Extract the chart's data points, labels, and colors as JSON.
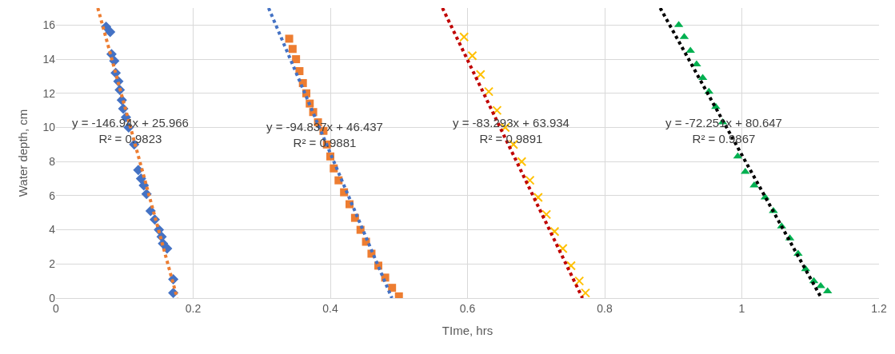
{
  "chart_data": {
    "type": "scatter",
    "xlabel": "TIme, hrs",
    "ylabel": "Water depth, cm",
    "xlim": [
      0,
      1.2
    ],
    "xticks": [
      0,
      0.2,
      0.4,
      0.6,
      0.8,
      1,
      1.2
    ],
    "ylim": [
      0,
      17
    ],
    "yticks": [
      0,
      2,
      4,
      6,
      8,
      10,
      12,
      14,
      16
    ],
    "grid": true,
    "series": [
      {
        "marker": "diamond",
        "color": "#4472c4",
        "x": [
          0.073,
          0.079,
          0.081,
          0.085,
          0.087,
          0.091,
          0.093,
          0.096,
          0.098,
          0.102,
          0.106,
          0.11,
          0.114,
          0.12,
          0.124,
          0.128,
          0.132,
          0.138,
          0.144,
          0.15,
          0.154,
          0.156,
          0.162,
          0.171,
          0.171
        ],
        "values": [
          15.9,
          15.6,
          14.3,
          13.9,
          13.2,
          12.7,
          12.2,
          11.6,
          11.1,
          10.6,
          10.0,
          null,
          9.0,
          7.5,
          7.0,
          6.6,
          6.1,
          5.1,
          4.6,
          4.0,
          3.6,
          3.2,
          2.9,
          1.1,
          0.3
        ]
      },
      {
        "marker": "square",
        "color": "#ed7d31",
        "x": [
          0.34,
          0.345,
          0.35,
          0.355,
          0.36,
          0.365,
          0.37,
          0.375,
          0.382,
          0.39,
          0.395,
          0.4,
          0.405,
          0.412,
          0.42,
          0.428,
          0.436,
          0.444,
          0.452,
          0.46,
          0.47,
          0.48,
          0.49,
          0.5
        ],
        "values": [
          15.2,
          14.6,
          14.0,
          13.3,
          12.6,
          12.0,
          11.4,
          10.9,
          10.3,
          9.8,
          9.0,
          8.3,
          7.6,
          6.9,
          6.2,
          5.5,
          4.7,
          4.0,
          3.3,
          2.6,
          1.9,
          1.2,
          0.6,
          0.1
        ]
      },
      {
        "marker": "cross",
        "color": "#ffc000",
        "x": [
          0.595,
          0.607,
          0.619,
          0.631,
          0.643,
          0.655,
          0.667,
          0.679,
          0.691,
          0.703,
          0.715,
          0.727,
          0.739,
          0.751,
          0.763,
          0.772
        ],
        "values": [
          15.3,
          14.2,
          13.1,
          12.1,
          11.0,
          10.0,
          9.0,
          8.0,
          6.9,
          5.9,
          4.9,
          3.9,
          2.9,
          1.9,
          1.0,
          0.3
        ]
      },
      {
        "marker": "triangle",
        "color": "#00b050",
        "x": [
          0.908,
          0.916,
          0.925,
          0.934,
          0.943,
          0.952,
          0.962,
          0.972,
          0.983,
          0.994,
          1.005,
          1.018,
          1.034,
          1.046,
          1.058,
          1.07,
          1.082,
          1.093,
          1.105,
          1.115,
          1.125
        ],
        "values": [
          16.0,
          15.3,
          14.5,
          13.7,
          12.9,
          12.1,
          11.2,
          10.3,
          null,
          8.3,
          7.4,
          6.6,
          5.9,
          5.1,
          4.2,
          3.5,
          2.6,
          1.7,
          1.0,
          0.7,
          0.4
        ]
      },
      {
        "type": "line",
        "marker": "none",
        "line_style": "dotted",
        "color": "#ed7d31",
        "x": [
          0.061,
          0.1767
        ],
        "values": [
          17,
          0
        ]
      },
      {
        "type": "line",
        "marker": "none",
        "line_style": "dotted",
        "color": "#4472c4",
        "x": [
          0.31,
          0.4897
        ],
        "values": [
          17,
          0
        ]
      },
      {
        "type": "line",
        "marker": "none",
        "line_style": "dotted",
        "color": "#c00000",
        "x": [
          0.5635,
          0.7676
        ],
        "values": [
          17,
          0
        ]
      },
      {
        "type": "line",
        "marker": "none",
        "line_style": "dotted",
        "color": "#000000",
        "x": [
          0.881,
          1.116
        ],
        "values": [
          17,
          0
        ]
      }
    ],
    "annotations": [
      {
        "text": "y = -146.94x + 25.966\nR² = 0.9823",
        "x": 0.109,
        "y": 9.8
      },
      {
        "text": "y = -94.837x + 46.437\nR² = 0.9881",
        "x": 0.392,
        "y": 9.6
      },
      {
        "text": "y = -83.293x + 63.934\nR² = 0.9891",
        "x": 0.664,
        "y": 9.8
      },
      {
        "text": "y = -72.251x + 80.647\nR² = 0.9867",
        "x": 0.974,
        "y": 9.8
      }
    ]
  }
}
